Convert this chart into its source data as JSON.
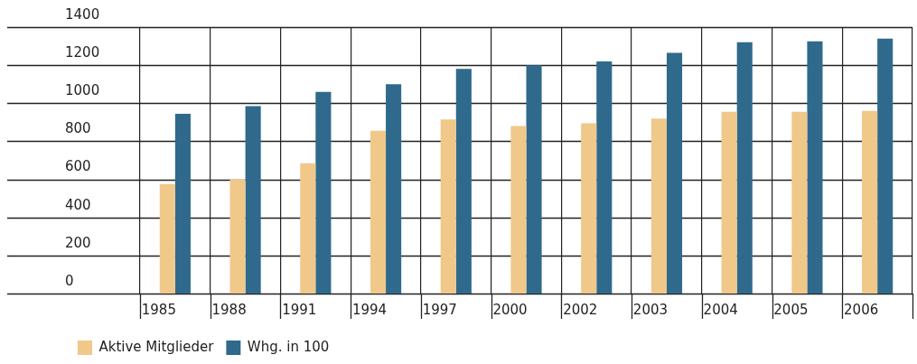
{
  "chart_data": {
    "type": "bar",
    "categories": [
      "1985",
      "1988",
      "1991",
      "1994",
      "1997",
      "2000",
      "2002",
      "2003",
      "2004",
      "2005",
      "2006"
    ],
    "series": [
      {
        "name": "Aktive Mitglieder",
        "color": "#f0c88a",
        "values": [
          575,
          600,
          685,
          855,
          915,
          880,
          895,
          920,
          955,
          955,
          960
        ]
      },
      {
        "name": "Whg. in 100",
        "color": "#2f6a8c",
        "values": [
          945,
          985,
          1060,
          1100,
          1180,
          1200,
          1220,
          1265,
          1320,
          1325,
          1340
        ]
      }
    ],
    "ylim": [
      0,
      1400
    ],
    "yticks": [
      0,
      200,
      400,
      600,
      800,
      1000,
      1200,
      1400
    ],
    "grid": true,
    "legend": "bottom left"
  }
}
